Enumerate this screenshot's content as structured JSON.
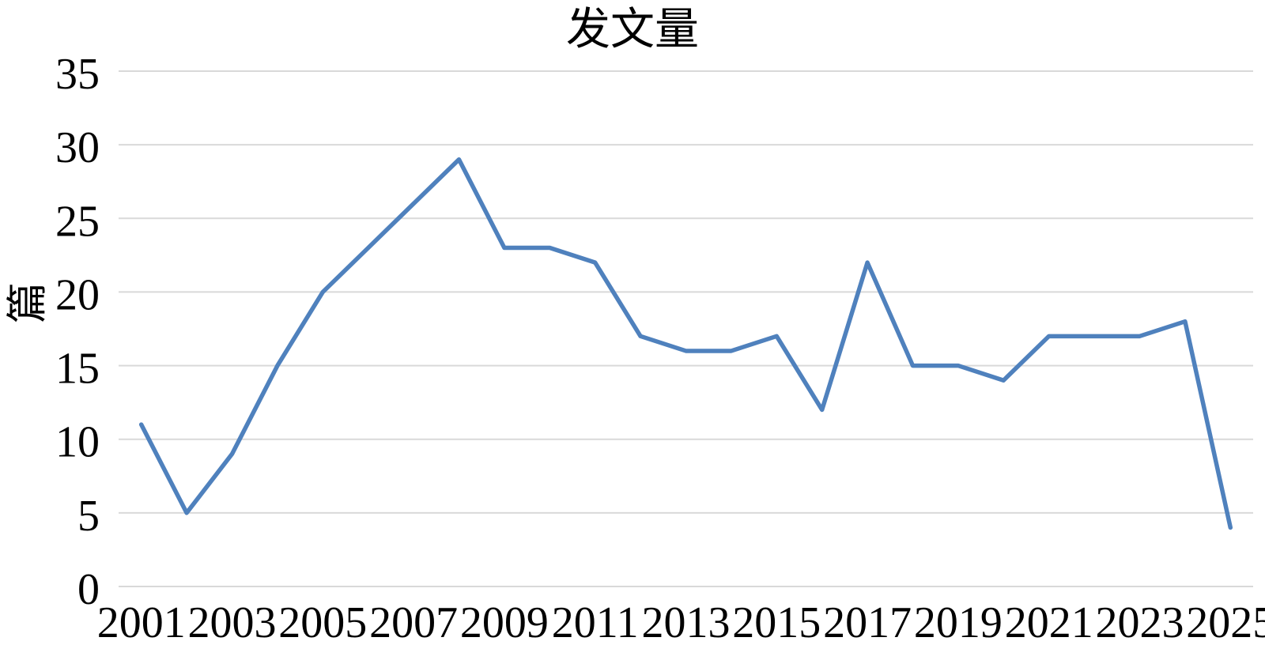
{
  "chart_data": {
    "type": "line",
    "title": "发文量",
    "xlabel": "",
    "ylabel": "篇",
    "unit": "篇",
    "categories": [
      "2001",
      "2002",
      "2003",
      "2004",
      "2005",
      "2006",
      "2007",
      "2008",
      "2009",
      "2010",
      "2011",
      "2012",
      "2013",
      "2014",
      "2015",
      "2016",
      "2017",
      "2018",
      "2019",
      "2020",
      "2021",
      "2022",
      "2023",
      "2024",
      "2025"
    ],
    "values": [
      11,
      5,
      9,
      15,
      20,
      23,
      26,
      29,
      23,
      23,
      22,
      17,
      16,
      16,
      17,
      12,
      22,
      15,
      15,
      14,
      17,
      17,
      17,
      18,
      4
    ],
    "x_tick_labels": [
      "2001",
      "2003",
      "2005",
      "2007",
      "2009",
      "2011",
      "2013",
      "2015",
      "2017",
      "2019",
      "2021",
      "2023",
      "2025"
    ],
    "y_ticks": [
      0,
      5,
      10,
      15,
      20,
      25,
      30,
      35
    ],
    "ylim": [
      0,
      35
    ],
    "grid": "horizontal",
    "legend_position": "none",
    "line_color": "#4F81BD",
    "gridline_color": "#D9D9D9",
    "text_color": "#000000",
    "background_color": "#FFFFFF"
  }
}
